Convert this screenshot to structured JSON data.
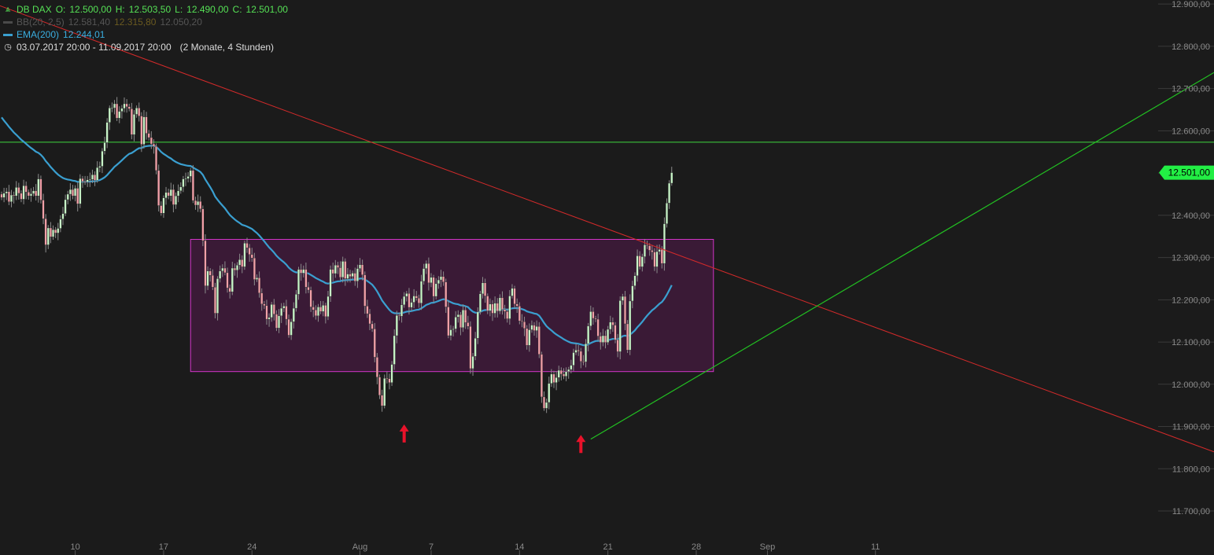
{
  "chart_data": {
    "type": "candlestick",
    "instrument": "DB DAX",
    "header": {
      "open_label": "O:",
      "open": "12.500,00",
      "high_label": "H:",
      "high": "12.503,50",
      "low_label": "L:",
      "low": "12.490,00",
      "close_label": "C:",
      "close": "12.501,00"
    },
    "indicators": [
      {
        "name": "BB(20, 2.5)",
        "values": [
          "12.581,40",
          "12.315,80",
          "12.050,20"
        ],
        "color": "#4a4a4a"
      },
      {
        "name": "EMA(200)",
        "values": [
          "12.244,01"
        ],
        "color": "#3a9fd0"
      }
    ],
    "period": {
      "range": "03.07.2017 20:00 - 11.09.2017 20:00",
      "resolution": "(2 Monate, 4 Stunden)"
    },
    "price_badge": "12.501,00",
    "last_price": 12501,
    "ylim": [
      11660,
      12905
    ],
    "y_ticks": [
      "11.700,00",
      "11.800,00",
      "11.900,00",
      "12.000,00",
      "12.100,00",
      "12.200,00",
      "12.300,00",
      "12.400,00",
      "12.500,00",
      "12.600,00",
      "12.700,00",
      "12.800,00",
      "12.900,00"
    ],
    "x_ticks": [
      "10",
      "17",
      "24",
      "Aug",
      "7",
      "14",
      "21",
      "28",
      "Sep",
      "11"
    ],
    "colors": {
      "background": "#1b1b1b",
      "up": "#c8f5c8",
      "down": "#f2a0a8",
      "ema": "#3a9fd0",
      "downtrend": "#d42a2a",
      "uptrend": "#22c022",
      "resistance": "#3fd63f",
      "range_fill": "#3a1a36",
      "range_border": "#d235c8",
      "arrow": "#e8122a",
      "badge": "#22ee44"
    },
    "series_close": [
      12442,
      12452,
      12456,
      12432,
      12448,
      12446,
      12466,
      12452,
      12438,
      12470,
      12455,
      12446,
      12451,
      12458,
      12446,
      12486,
      12436,
      12392,
      12330,
      12370,
      12349,
      12366,
      12358,
      12369,
      12391,
      12404,
      12437,
      12450,
      12461,
      12446,
      12464,
      12427,
      12487,
      12480,
      12479,
      12484,
      12485,
      12496,
      12483,
      12513,
      12516,
      12552,
      12572,
      12620,
      12654,
      12654,
      12664,
      12630,
      12646,
      12653,
      12664,
      12657,
      12652,
      12591,
      12639,
      12654,
      12635,
      12568,
      12633,
      12594,
      12584,
      12569,
      12563,
      12506,
      12423,
      12405,
      12441,
      12454,
      12446,
      12461,
      12425,
      12446,
      12458,
      12467,
      12486,
      12487,
      12492,
      12506,
      12435,
      12424,
      12433,
      12415,
      12340,
      12233,
      12268,
      12258,
      12230,
      12168,
      12250,
      12268,
      12275,
      12264,
      12228,
      12219,
      12275,
      12270,
      12282,
      12295,
      12278,
      12334,
      12323,
      12307,
      12299,
      12248,
      12252,
      12216,
      12190,
      12186,
      12154,
      12158,
      12189,
      12166,
      12133,
      12162,
      12180,
      12185,
      12154,
      12116,
      12148,
      12180,
      12213,
      12272,
      12263,
      12272,
      12230,
      12223,
      12183,
      12176,
      12162,
      12183,
      12172,
      12187,
      12160,
      12208,
      12272,
      12262,
      12282,
      12276,
      12253,
      12291,
      12250,
      12261,
      12255,
      12263,
      12244,
      12274,
      12283,
      12259,
      12185,
      12167,
      12143,
      12131,
      12064,
      12017,
      11974,
      11949,
      12014,
      12013,
      12004,
      12047,
      12115,
      12163,
      12161,
      12188,
      12208,
      12215,
      12182,
      12194,
      12209,
      12204,
      12192,
      12244,
      12274,
      12286,
      12240,
      12253,
      12208,
      12238,
      12247,
      12255,
      12242,
      12183,
      12115,
      12129,
      12131,
      12159,
      12165,
      12134,
      12176,
      12146,
      12137,
      12037,
      12066,
      12109,
      12171,
      12214,
      12240,
      12209,
      12174,
      12190,
      12168,
      12192,
      12173,
      12205,
      12177,
      12172,
      12155,
      12209,
      12227,
      12190,
      12185,
      12150,
      12148,
      12132,
      12092,
      12129,
      12140,
      12127,
      12137,
      12071,
      11970,
      11943,
      11957,
      12002,
      12024,
      12004,
      12016,
      12033,
      12024,
      12019,
      12030,
      12035,
      12045,
      12075,
      12081,
      12078,
      12054,
      12053,
      12096,
      12138,
      12172,
      12156,
      12154,
      12114,
      12099,
      12115,
      12099,
      12130,
      12147,
      12140,
      12105,
      12077,
      12198,
      12208,
      12143,
      12081,
      12197,
      12233,
      12257,
      12304,
      12278,
      12302,
      12330,
      12328,
      12317,
      12313,
      12278,
      12314,
      12319,
      12286,
      12380,
      12429,
      12476,
      12501
    ],
    "downtrend_line": {
      "from": {
        "index": 0,
        "value": 12900
      },
      "to": {
        "index": 361,
        "value": 11840
      }
    },
    "uptrend_line": {
      "from": {
        "index": 240,
        "value": 11870
      },
      "to": {
        "index": 361,
        "value": 12738
      }
    },
    "resistance_level": 12573,
    "range_box": {
      "from_index": 77,
      "to_index": 290,
      "top": 12343,
      "bottom": 12030
    },
    "arrows": [
      {
        "index": 164,
        "value": 11905
      },
      {
        "index": 236,
        "value": 11880
      }
    ]
  }
}
